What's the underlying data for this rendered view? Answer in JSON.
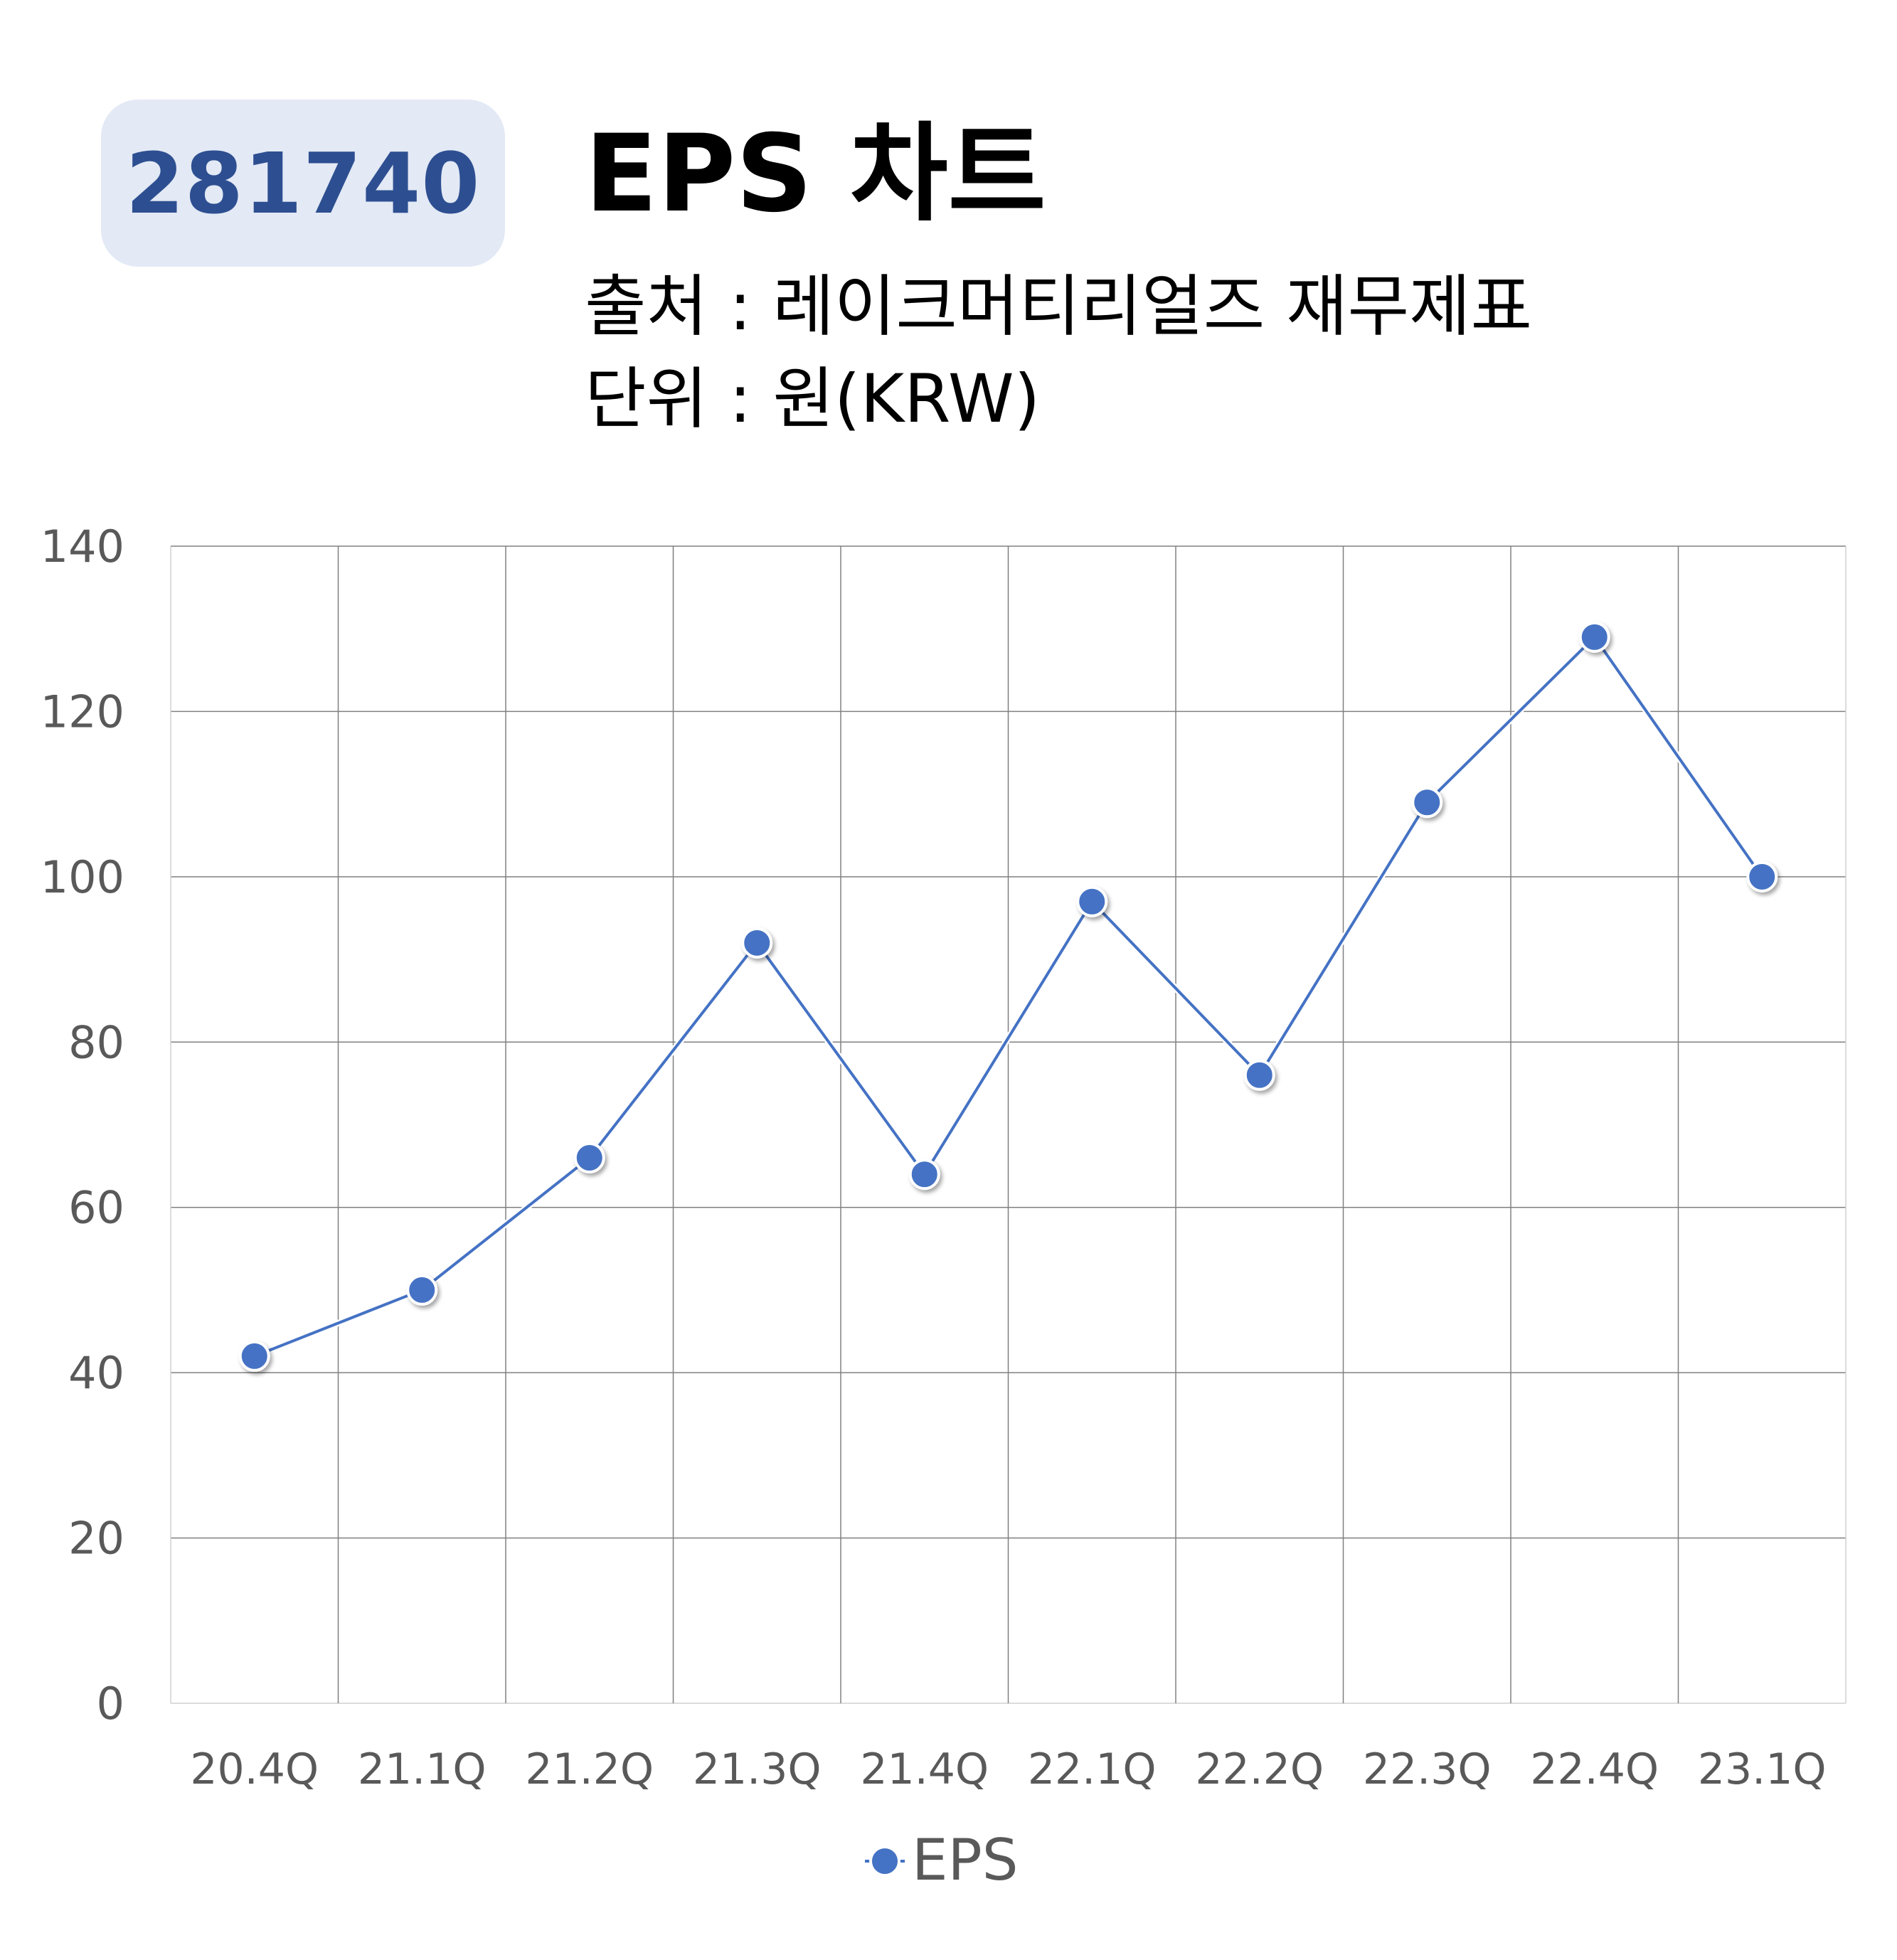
{
  "header": {
    "code": "281740",
    "title": "EPS 차트",
    "source_line": "출처 : 레이크머티리얼즈 재무제표",
    "unit_line": "단위 : 원(KRW)"
  },
  "colors": {
    "badge_bg": "#e3e9f5",
    "badge_text": "#2d4f91",
    "series": "#4472c4",
    "grid": "#808080",
    "tick_text": "#595959"
  },
  "chart_data": {
    "type": "line",
    "categories": [
      "20.4Q",
      "21.1Q",
      "21.2Q",
      "21.3Q",
      "21.4Q",
      "22.1Q",
      "22.2Q",
      "22.3Q",
      "22.4Q",
      "23.1Q"
    ],
    "series": [
      {
        "name": "EPS",
        "values": [
          42,
          50,
          66,
          92,
          64,
          97,
          76,
          109,
          129,
          100
        ]
      }
    ],
    "ylim": [
      0,
      140
    ],
    "yticks": [
      0,
      20,
      40,
      60,
      80,
      100,
      120,
      140
    ],
    "grid": true,
    "legend": "bottom-center",
    "markers": true
  }
}
